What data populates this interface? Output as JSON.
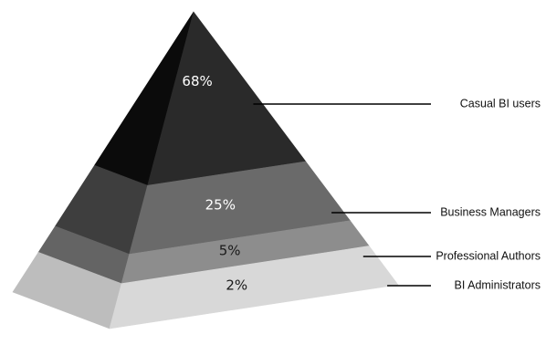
{
  "chart_data": {
    "type": "pyramid",
    "title": "",
    "categories": [
      "Casual BI users",
      "Business Managers",
      "Professional Authors",
      "BI Administrators"
    ],
    "values": [
      68,
      25,
      5,
      2
    ],
    "value_labels": [
      "68%",
      "25%",
      "5%",
      "2%"
    ],
    "unit": "%",
    "legend": "right-callouts",
    "colors": {
      "front": [
        "#2a2a2a",
        "#6a6a6a",
        "#8d8d8d",
        "#d8d8d8"
      ],
      "side": [
        "#0b0b0b",
        "#3e3e3e",
        "#646464",
        "#bdbdbd"
      ],
      "label": [
        "#ffffff",
        "#ffffff",
        "#1a1a1a",
        "#1a1a1a"
      ],
      "line": "#000000"
    }
  }
}
